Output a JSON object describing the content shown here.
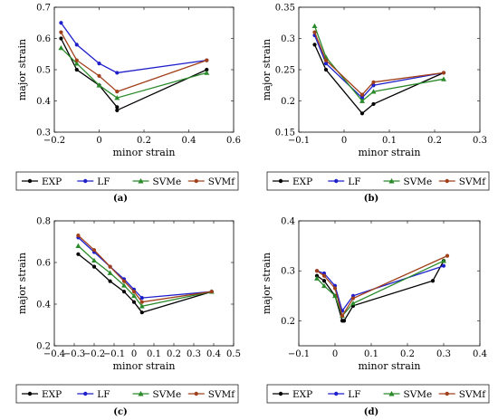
{
  "chart_data": [
    {
      "panel": "a",
      "caption": "(a)",
      "type": "line",
      "xlabel": "minor strain",
      "ylabel": "major strain",
      "xlim": [
        -0.2,
        0.6
      ],
      "ylim": [
        0.3,
        0.7
      ],
      "xticks": [
        "−0.2",
        "0",
        "0.2",
        "0.4",
        "0.6"
      ],
      "xtick_values": [
        -0.2,
        0,
        0.2,
        0.4,
        0.6
      ],
      "yticks": [
        "0.3",
        "0.4",
        "0.5",
        "0.6",
        "0.7"
      ],
      "ytick_values": [
        0.3,
        0.4,
        0.5,
        0.6,
        0.7
      ],
      "series": [
        {
          "name": "EXP",
          "color": "#000000",
          "marker": "circle",
          "x": [
            -0.17,
            -0.1,
            0.0,
            0.08,
            0.08,
            0.48
          ],
          "y": [
            0.6,
            0.5,
            0.45,
            0.38,
            0.37,
            0.5
          ]
        },
        {
          "name": "LF",
          "color": "#1f1fcc",
          "marker": "circle",
          "x": [
            -0.17,
            -0.1,
            0.0,
            0.08,
            0.48
          ],
          "y": [
            0.65,
            0.58,
            0.52,
            0.49,
            0.53
          ]
        },
        {
          "name": "SVMe",
          "color": "#2a8a2a",
          "marker": "triangle",
          "x": [
            -0.17,
            -0.1,
            0.0,
            0.08,
            0.48
          ],
          "y": [
            0.57,
            0.52,
            0.45,
            0.41,
            0.49
          ]
        },
        {
          "name": "SVMf",
          "color": "#a0401a",
          "marker": "circle",
          "x": [
            -0.17,
            -0.1,
            0.0,
            0.08,
            0.48
          ],
          "y": [
            0.62,
            0.53,
            0.48,
            0.43,
            0.53
          ]
        }
      ]
    },
    {
      "panel": "b",
      "caption": "(b)",
      "type": "line",
      "xlabel": "minor strain",
      "ylabel": "major strain",
      "xlim": [
        -0.1,
        0.3
      ],
      "ylim": [
        0.15,
        0.35
      ],
      "xticks": [
        "−0.1",
        "0",
        "0.1",
        "0.2",
        "0.3"
      ],
      "xtick_values": [
        -0.1,
        0,
        0.1,
        0.2,
        0.3
      ],
      "yticks": [
        "0.15",
        "0.2",
        "0.25",
        "0.3",
        "0.35"
      ],
      "ytick_values": [
        0.15,
        0.2,
        0.25,
        0.3,
        0.35
      ],
      "series": [
        {
          "name": "EXP",
          "color": "#000000",
          "marker": "circle",
          "x": [
            -0.065,
            -0.04,
            0.04,
            0.065,
            0.22
          ],
          "y": [
            0.29,
            0.25,
            0.18,
            0.195,
            0.245
          ]
        },
        {
          "name": "LF",
          "color": "#1f1fcc",
          "marker": "circle",
          "x": [
            -0.065,
            -0.04,
            0.04,
            0.065,
            0.22
          ],
          "y": [
            0.305,
            0.26,
            0.205,
            0.225,
            0.245
          ]
        },
        {
          "name": "SVMe",
          "color": "#2a8a2a",
          "marker": "triangle",
          "x": [
            -0.065,
            -0.04,
            0.04,
            0.065,
            0.22
          ],
          "y": [
            0.32,
            0.27,
            0.2,
            0.215,
            0.235
          ]
        },
        {
          "name": "SVMf",
          "color": "#a0401a",
          "marker": "circle",
          "x": [
            -0.065,
            -0.04,
            0.04,
            0.065,
            0.22
          ],
          "y": [
            0.31,
            0.265,
            0.21,
            0.23,
            0.245
          ]
        }
      ]
    },
    {
      "panel": "c",
      "caption": "(c)",
      "type": "line",
      "xlabel": "minor strain",
      "ylabel": "major strain",
      "xlim": [
        -0.4,
        0.5
      ],
      "ylim": [
        0.2,
        0.8
      ],
      "xticks": [
        "−0.4",
        "−0.3",
        "−0.2",
        "−0.1",
        "0",
        "0.1",
        "0.2",
        "0.3",
        "0.4",
        "0.5"
      ],
      "xtick_values": [
        -0.4,
        -0.3,
        -0.2,
        -0.1,
        0,
        0.1,
        0.2,
        0.3,
        0.4,
        0.5
      ],
      "yticks": [
        "0.2",
        "0.4",
        "0.6",
        "0.8"
      ],
      "ytick_values": [
        0.2,
        0.4,
        0.6,
        0.8
      ],
      "series": [
        {
          "name": "EXP",
          "color": "#000000",
          "marker": "circle",
          "x": [
            -0.28,
            -0.2,
            -0.12,
            -0.05,
            0.0,
            0.04,
            0.39
          ],
          "y": [
            0.64,
            0.58,
            0.51,
            0.46,
            0.41,
            0.36,
            0.46
          ]
        },
        {
          "name": "LF",
          "color": "#1f1fcc",
          "marker": "circle",
          "x": [
            -0.28,
            -0.2,
            -0.12,
            -0.05,
            0.0,
            0.04,
            0.39
          ],
          "y": [
            0.72,
            0.65,
            0.58,
            0.52,
            0.47,
            0.43,
            0.46
          ]
        },
        {
          "name": "SVMe",
          "color": "#2a8a2a",
          "marker": "triangle",
          "x": [
            -0.28,
            -0.2,
            -0.12,
            -0.05,
            0.0,
            0.04,
            0.39
          ],
          "y": [
            0.68,
            0.61,
            0.55,
            0.49,
            0.44,
            0.39,
            0.46
          ]
        },
        {
          "name": "SVMf",
          "color": "#a0401a",
          "marker": "circle",
          "x": [
            -0.28,
            -0.2,
            -0.12,
            -0.05,
            0.0,
            0.04,
            0.39
          ],
          "y": [
            0.73,
            0.66,
            0.58,
            0.51,
            0.46,
            0.41,
            0.46
          ]
        }
      ]
    },
    {
      "panel": "d",
      "caption": "(d)",
      "type": "line",
      "xlabel": "minor strain",
      "ylabel": "major strain",
      "xlim": [
        -0.1,
        0.4
      ],
      "ylim": [
        0.15,
        0.4
      ],
      "xticks": [
        "−0.1",
        "0",
        "0.1",
        "0.2",
        "0.3",
        "0.4"
      ],
      "xtick_values": [
        -0.1,
        0,
        0.1,
        0.2,
        0.3,
        0.4
      ],
      "yticks": [
        "0.2",
        "0.3",
        "0.4"
      ],
      "ytick_values": [
        0.2,
        0.3,
        0.4
      ],
      "series": [
        {
          "name": "EXP",
          "color": "#000000",
          "marker": "circle",
          "x": [
            -0.05,
            -0.03,
            0.0,
            0.02,
            0.025,
            0.05,
            0.27,
            0.3
          ],
          "y": [
            0.29,
            0.28,
            0.25,
            0.2,
            0.2,
            0.23,
            0.28,
            0.32
          ]
        },
        {
          "name": "LF",
          "color": "#1f1fcc",
          "marker": "circle",
          "x": [
            -0.05,
            -0.03,
            0.0,
            0.02,
            0.05,
            0.3
          ],
          "y": [
            0.3,
            0.295,
            0.27,
            0.22,
            0.25,
            0.31
          ]
        },
        {
          "name": "SVMe",
          "color": "#2a8a2a",
          "marker": "triangle",
          "x": [
            -0.05,
            -0.03,
            0.0,
            0.02,
            0.05,
            0.3
          ],
          "y": [
            0.285,
            0.27,
            0.25,
            0.21,
            0.235,
            0.32
          ]
        },
        {
          "name": "SVMf",
          "color": "#a0401a",
          "marker": "circle",
          "x": [
            -0.05,
            -0.03,
            0.0,
            0.02,
            0.05,
            0.31
          ],
          "y": [
            0.3,
            0.29,
            0.265,
            0.21,
            0.245,
            0.33
          ]
        }
      ]
    }
  ]
}
